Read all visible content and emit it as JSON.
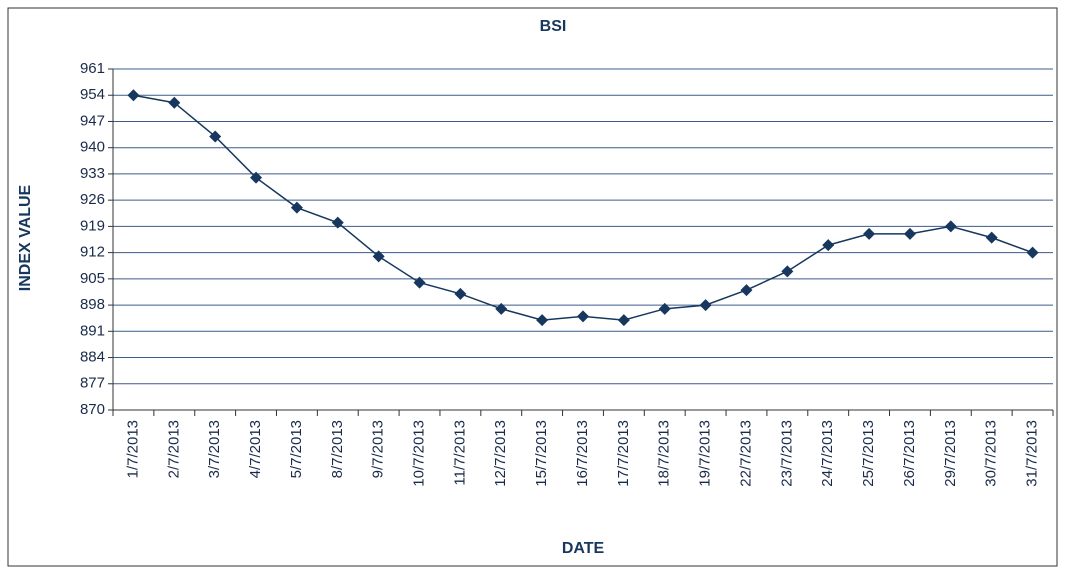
{
  "chart_data": {
    "type": "line",
    "title": "BSI",
    "x_label": "DATE",
    "y_label": "INDEX VALUE",
    "categories": [
      "1/7/2013",
      "2/7/2013",
      "3/7/2013",
      "4/7/2013",
      "5/7/2013",
      "8/7/2013",
      "9/7/2013",
      "10/7/2013",
      "11/7/2013",
      "12/7/2013",
      "15/7/2013",
      "16/7/2013",
      "17/7/2013",
      "18/7/2013",
      "19/7/2013",
      "22/7/2013",
      "23/7/2013",
      "24/7/2013",
      "25/7/2013",
      "26/7/2013",
      "29/7/2013",
      "30/7/2013",
      "31/7/2013"
    ],
    "series": [
      {
        "name": "BSI",
        "color": "#17375e",
        "values": [
          954,
          952,
          943,
          932,
          924,
          920,
          911,
          904,
          901,
          897,
          894,
          895,
          894,
          897,
          898,
          902,
          907,
          914,
          917,
          917,
          919,
          916,
          912
        ]
      }
    ],
    "ylim": [
      870,
      961
    ],
    "yticks": [
      870,
      877,
      884,
      891,
      898,
      905,
      912,
      919,
      926,
      933,
      940,
      947,
      954,
      961
    ],
    "grid": true
  }
}
